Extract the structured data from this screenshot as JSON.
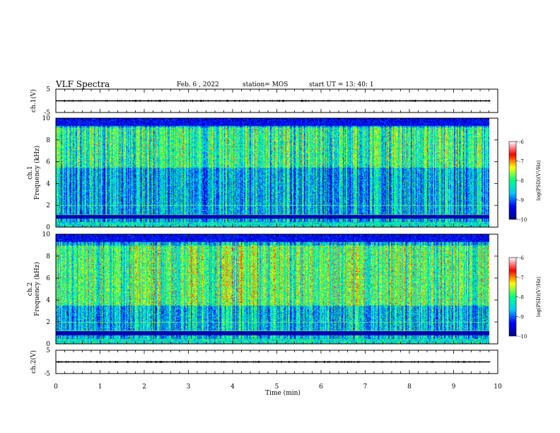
{
  "header": {
    "title": "VLF Spectra",
    "date": "Feb. 6 , 2022",
    "station": "station= MOS",
    "start": "start UT = 13: 40: 1"
  },
  "chart_data": [
    {
      "type": "line",
      "name": "ch1-voltage",
      "ylabel": "ch.1(V)",
      "ylim": [
        -5,
        5
      ],
      "yticks": [
        "5",
        "-5"
      ],
      "trace_level": 0
    },
    {
      "type": "heatmap",
      "name": "ch1-spectrogram",
      "ylabel": "ch.1\nFrequency (kHz)",
      "ylim": [
        0,
        10
      ],
      "yticks": [
        "0",
        "2",
        "4",
        "6",
        "8",
        "10"
      ],
      "colorbar": {
        "label": "log(PSD)(V²/Hz)",
        "range": [
          -10,
          -6
        ],
        "ticks": [
          "-6",
          "-7",
          "-8",
          "-9",
          "-10"
        ]
      }
    },
    {
      "type": "heatmap",
      "name": "ch2-spectrogram",
      "ylabel": "ch.2\nFrequency (kHz)",
      "ylim": [
        0,
        10
      ],
      "yticks": [
        "0",
        "2",
        "4",
        "6",
        "8",
        "10"
      ],
      "colorbar": {
        "label": "log(PSD)(V²/Hz)",
        "range": [
          -10,
          -6
        ],
        "ticks": [
          "-6",
          "-7",
          "-8",
          "-9",
          "-10"
        ]
      }
    },
    {
      "type": "line",
      "name": "ch2-voltage",
      "ylabel": "ch.2(V)",
      "ylim": [
        -5,
        5
      ],
      "yticks": [
        "5",
        "-5"
      ],
      "trace_level": 0
    }
  ],
  "xaxis": {
    "label": "Time (min)",
    "range": [
      0,
      10
    ],
    "ticks": [
      "0",
      "1",
      "2",
      "3",
      "4",
      "5",
      "6",
      "7",
      "8",
      "9",
      "10"
    ],
    "data_end": 9.83
  },
  "colors": {
    "colormap": [
      "#00008b",
      "#0000ff",
      "#00c8ff",
      "#00ff80",
      "#ffff00",
      "#ff0000",
      "#ffffff"
    ],
    "axis": "#000000"
  }
}
